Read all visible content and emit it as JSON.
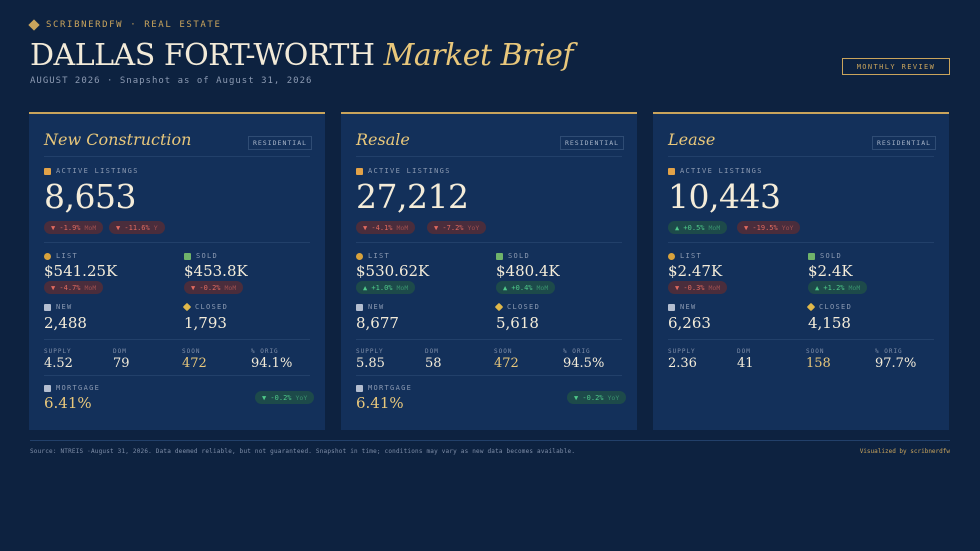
{
  "header": {
    "brand": "SCRIBNERDFW · REAL ESTATE",
    "title_main": "DALLAS FORT-WORTH",
    "title_accent": "Market Brief",
    "subtitle": "AUGUST 2026 · Snapshot as of August 31, 2026",
    "review_button": "MONTHLY REVIEW"
  },
  "labels": {
    "active_listings": "ACTIVE LISTINGS",
    "list": "LIST",
    "sold": "SOLD",
    "new": "NEW",
    "closed": "CLOSED",
    "supply": "SUPPLY",
    "dom": "DOM",
    "soon": "SOON",
    "orig": "% ORIG",
    "mortgage": "MORTGAGE"
  },
  "cards": [
    {
      "title": "New Construction",
      "tag": "RESIDENTIAL",
      "active_listings": "8,653",
      "active_mom": {
        "label": "▼ -1.9%",
        "unit": "MoM"
      },
      "active_yoy": {
        "label": "▼ -11.6%",
        "unit": "Y"
      },
      "list_price": "$541.25K",
      "list_change": {
        "label": "▼ -4.7%",
        "unit": "MoM"
      },
      "sold_price": "$453.8K",
      "sold_change": {
        "label": "▼ -0.2%",
        "unit": "MoM"
      },
      "new": "2,488",
      "closed": "1,793",
      "supply": "4.52",
      "dom": "79",
      "soon": "472",
      "orig": "94.1%",
      "mortgage": "6.41%",
      "mortgage_change": {
        "label": "▼ -0.2%",
        "unit": "YoY"
      }
    },
    {
      "title": "Resale",
      "tag": "RESIDENTIAL",
      "active_listings": "27,212",
      "active_mom": {
        "label": "▼ -4.1%",
        "unit": "MoM"
      },
      "active_yoy": {
        "label": "▼ -7.2%",
        "unit": "YoY"
      },
      "list_price": "$530.62K",
      "list_change": {
        "label": "▲ +1.0%",
        "unit": "MoM"
      },
      "sold_price": "$480.4K",
      "sold_change": {
        "label": "▲ +0.4%",
        "unit": "MoM"
      },
      "new": "8,677",
      "closed": "5,618",
      "supply": "5.85",
      "dom": "58",
      "soon": "472",
      "orig": "94.5%",
      "mortgage": "6.41%",
      "mortgage_change": {
        "label": "▼ -0.2%",
        "unit": "YoY"
      }
    },
    {
      "title": "Lease",
      "tag": "RESIDENTIAL",
      "active_listings": "10,443",
      "active_mom": {
        "label": "▲ +0.5%",
        "unit": "MoM"
      },
      "active_yoy": {
        "label": "▼ -19.5%",
        "unit": "YoY"
      },
      "list_price": "$2.47K",
      "list_change": {
        "label": "▼ -0.3%",
        "unit": "MoM"
      },
      "sold_price": "$2.4K",
      "sold_change": {
        "label": "▲ +1.2%",
        "unit": "MoM"
      },
      "new": "6,263",
      "closed": "4,158",
      "supply": "2.36",
      "dom": "41",
      "soon": "158",
      "orig": "97.7%"
    }
  ],
  "footer": {
    "source": "Source: NTREIS ·August 31, 2026. Data deemed reliable, but not guaranteed. Snapshot in time; conditions may vary as new data becomes available.",
    "credit": "Visualized by scribnerdfw"
  },
  "colors": {
    "background": "#0d2240",
    "card": "#13305a",
    "accent_gold": "#c9a45c",
    "negative": "#e06a5f",
    "positive": "#4fc98a"
  }
}
